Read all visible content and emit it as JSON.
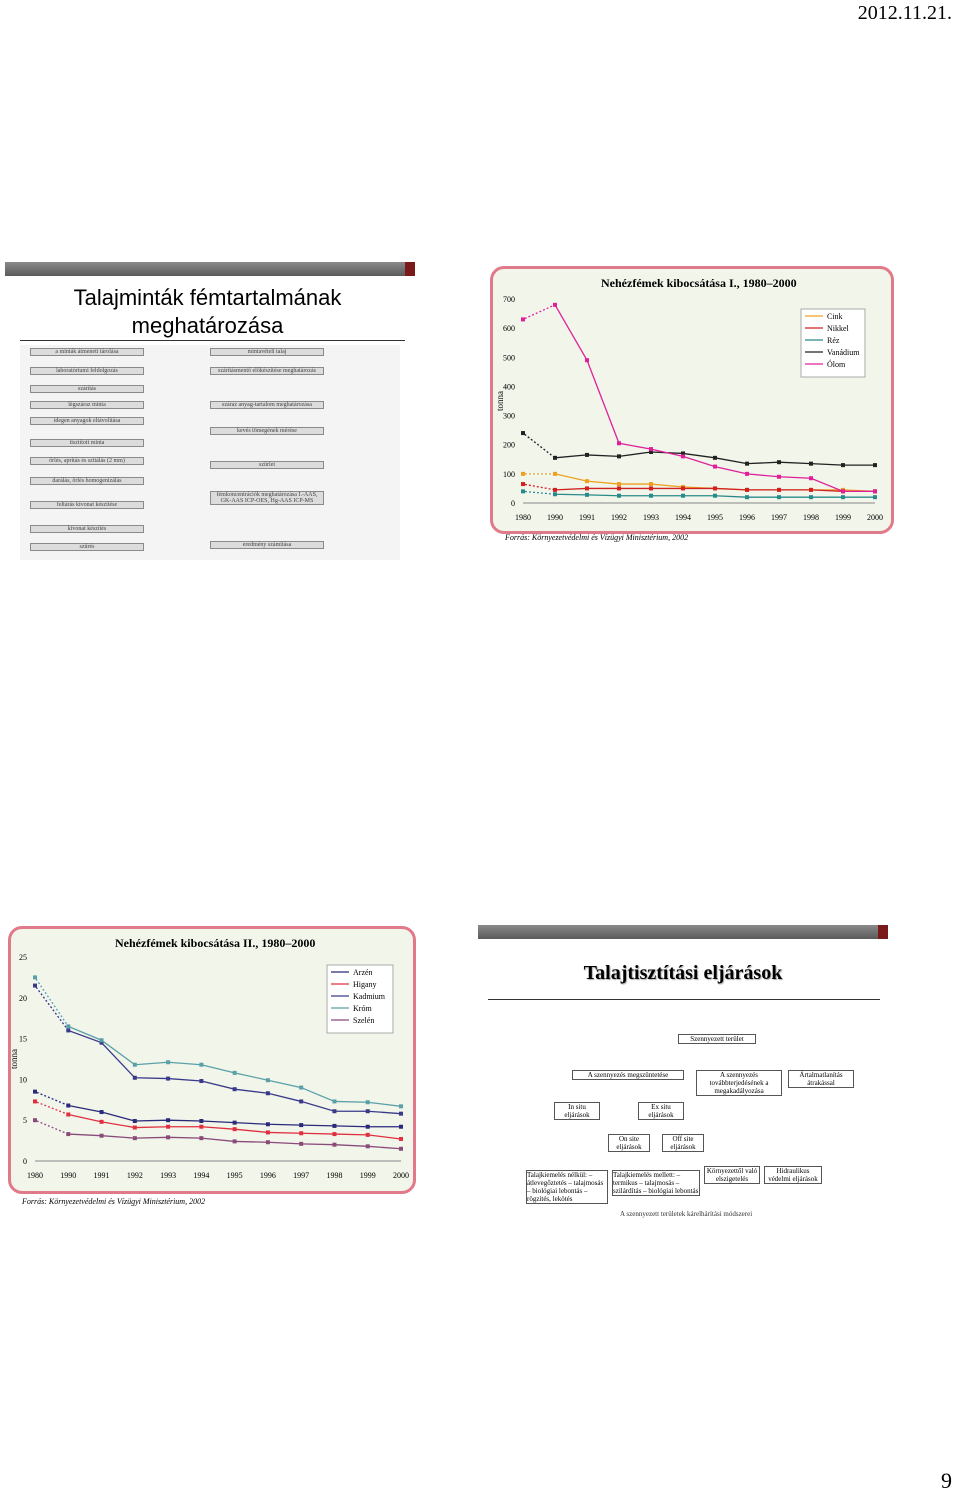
{
  "header": {
    "date": "2012.11.21."
  },
  "footer": {
    "page_number": "9"
  },
  "slide1": {
    "title": "Talajminták fémtartalmának meghatározása",
    "flowchart": {
      "left": [
        "a minták átmeneti tárolása",
        "laboratóriumi feldolgozás",
        "szárítás",
        "légszáraz minta",
        "idegen anyagok eltávolítása",
        "tisztított minta",
        "őrlés, aprítás és szitálás (2 mm)",
        "darálás, őrlés homogenizálás",
        "feltárás kivonat készítése",
        "kivonat készítés",
        "szűrés"
      ],
      "right": [
        "mintavételi talaj",
        "szárításmentő előkészítése meghatározás",
        "száraz anyag-tartalom meghatározása",
        "kevés tömegének mérése",
        "szűrlet",
        "fémkoncentrációk meghatározása I.-AAS, GK-AAS ICP-OES, Hg-AAS ICP-MS",
        "eredmény számítása"
      ]
    }
  },
  "chart1": {
    "chart_data": {
      "type": "line",
      "title": "Nehézfémek kibocsátása I., 1980–2000",
      "ylabel": "tonna",
      "xlabel": "",
      "x": [
        "1980",
        "1990",
        "1991",
        "1992",
        "1993",
        "1994",
        "1995",
        "1996",
        "1997",
        "1998",
        "1999",
        "2000"
      ],
      "ylim": [
        0,
        700
      ],
      "yticks": [
        0,
        100,
        200,
        300,
        400,
        500,
        600,
        700
      ],
      "legend_position": "top-right",
      "series": [
        {
          "name": "Cink",
          "color": "#f0a020",
          "values": [
            100,
            100,
            75,
            65,
            65,
            55,
            50,
            45,
            45,
            45,
            45,
            40
          ]
        },
        {
          "name": "Nikkel",
          "color": "#d02020",
          "values": [
            65,
            45,
            50,
            50,
            50,
            50,
            50,
            45,
            45,
            45,
            40,
            40
          ]
        },
        {
          "name": "Réz",
          "color": "#2a8a8a",
          "values": [
            40,
            30,
            28,
            25,
            25,
            25,
            25,
            20,
            20,
            20,
            20,
            20
          ]
        },
        {
          "name": "Vanádium",
          "color": "#222222",
          "values": [
            240,
            155,
            165,
            160,
            175,
            170,
            155,
            135,
            140,
            135,
            130,
            130
          ]
        },
        {
          "name": "Ólom",
          "color": "#e0209a",
          "values": [
            630,
            680,
            490,
            205,
            185,
            160,
            125,
            100,
            90,
            85,
            40,
            40
          ]
        }
      ],
      "source": "Forrás: Környezetvédelmi és Vízügyi Minisztérium, 2002"
    }
  },
  "chart2": {
    "chart_data": {
      "type": "line",
      "title": "Nehézfémek kibocsátása II., 1980–2000",
      "ylabel": "tonna",
      "xlabel": "",
      "x": [
        "1980",
        "1990",
        "1991",
        "1992",
        "1993",
        "1994",
        "1995",
        "1996",
        "1997",
        "1998",
        "1999",
        "2000"
      ],
      "ylim": [
        0,
        25
      ],
      "yticks": [
        0,
        5,
        10,
        15,
        20,
        25
      ],
      "legend_position": "top-right",
      "series": [
        {
          "name": "Arzén",
          "color": "#2a2a7a",
          "values": [
            8.5,
            6.8,
            6.0,
            4.9,
            5.0,
            4.9,
            4.7,
            4.5,
            4.4,
            4.3,
            4.2,
            4.2
          ]
        },
        {
          "name": "Higany",
          "color": "#e03040",
          "values": [
            7.3,
            5.7,
            4.8,
            4.1,
            4.2,
            4.2,
            3.9,
            3.5,
            3.4,
            3.3,
            3.2,
            2.7
          ]
        },
        {
          "name": "Kadmium",
          "color": "#3a3a8a",
          "values": [
            21.5,
            16.0,
            14.5,
            10.2,
            10.1,
            9.8,
            8.8,
            8.3,
            7.3,
            6.1,
            6.1,
            5.8
          ]
        },
        {
          "name": "Króm",
          "color": "#5aa0a8",
          "values": [
            22.5,
            16.5,
            14.8,
            11.8,
            12.1,
            11.8,
            10.8,
            9.9,
            9.0,
            7.3,
            7.2,
            6.7
          ]
        },
        {
          "name": "Szelén",
          "color": "#8a4a7a",
          "values": [
            5.0,
            3.3,
            3.1,
            2.8,
            2.9,
            2.8,
            2.4,
            2.3,
            2.1,
            2.0,
            1.8,
            1.5
          ]
        }
      ],
      "source": "Forrás: Környezetvédelmi és Vízügyi Minisztérium, 2002"
    }
  },
  "slide4": {
    "title": "Talajtisztítási eljárások",
    "diagram": {
      "root": "Szennyezett terület",
      "level1": [
        "A szennyezés megszüntetése",
        "A szennyezés továbbterjedésének a megakadályozása",
        "Ártalmatlanítás átrakással"
      ],
      "level2": [
        "In situ eljárások",
        "Ex situ eljárások"
      ],
      "level3": [
        "On site eljárások",
        "Off site eljárások"
      ],
      "bottom": [
        "Talajkiemelés nélkül: – átlevegőztetés – talajmosás – biológiai lebontás – rögzítés, lekötés",
        "Talajkiemelés mellett: – termikus – talajmosás – szilárdítás – biológiai lebontás",
        "Környezettől való elszigetelés",
        "Hidraulikus védelmi eljárások"
      ],
      "caption": "A szennyezett területek kárelhárítási módszerei"
    }
  }
}
